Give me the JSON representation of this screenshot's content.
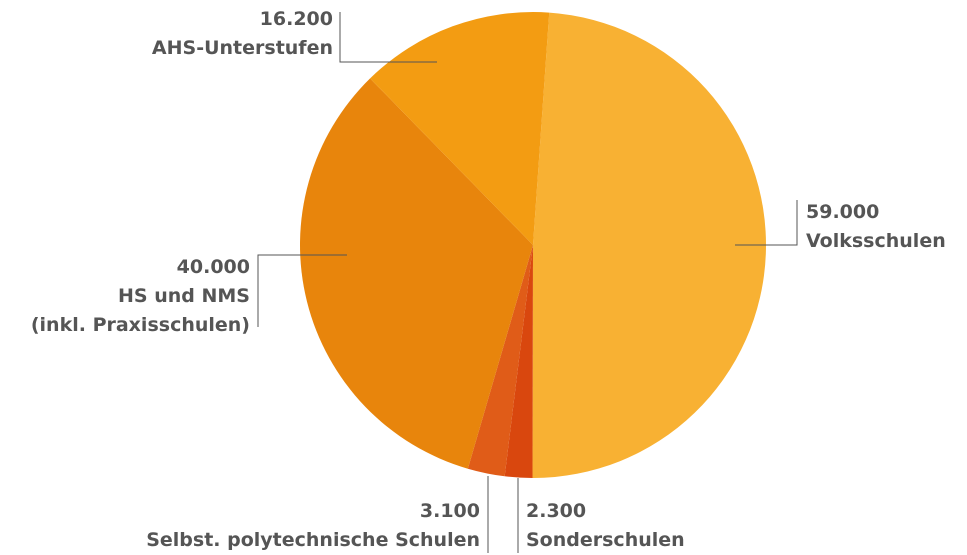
{
  "chart_data": {
    "type": "pie",
    "categories": [
      "Volksschulen",
      "Sonderschulen",
      "Selbst. polytechnische Schulen",
      "HS und NMS\n(inkl. Praxisschulen)",
      "AHS-Unterstufen"
    ],
    "values": [
      59000,
      2300,
      3100,
      40000,
      16200
    ],
    "value_labels": [
      "59.000",
      "2.300",
      "3.100",
      "40.000",
      "16.200"
    ],
    "colors": [
      "#f8b133",
      "#d9470e",
      "#e05c18",
      "#e8850c",
      "#f39c12"
    ]
  }
}
